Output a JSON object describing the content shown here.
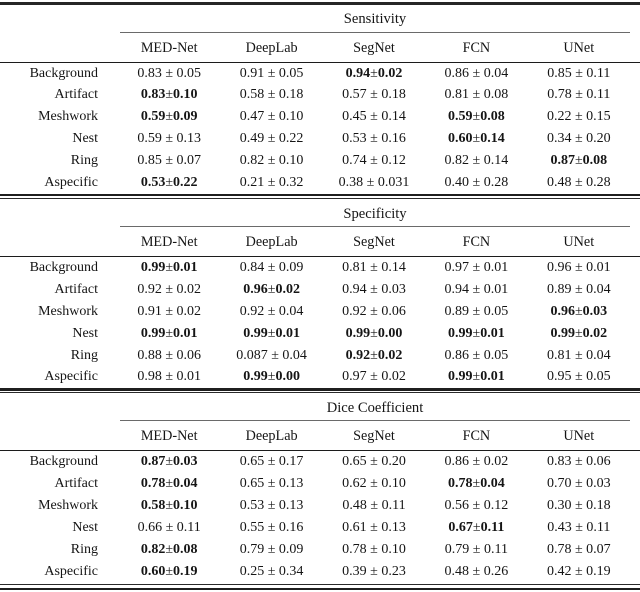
{
  "tables": [
    {
      "title": "Sensitivity",
      "columns": [
        "MED-Net",
        "DeepLab",
        "SegNet",
        "FCN",
        "UNet"
      ],
      "rows": [
        {
          "label": "Background",
          "cells": [
            {
              "v": "0.83 ± 0.05",
              "b": false
            },
            {
              "v": "0.91 ± 0.05",
              "b": false
            },
            {
              "v": "0.94 ± 0.02",
              "b": true
            },
            {
              "v": "0.86 ± 0.04",
              "b": false
            },
            {
              "v": "0.85 ± 0.11",
              "b": false
            }
          ]
        },
        {
          "label": "Artifact",
          "cells": [
            {
              "v": "0.83 ± 0.10",
              "b": true
            },
            {
              "v": "0.58 ± 0.18",
              "b": false
            },
            {
              "v": "0.57 ± 0.18",
              "b": false
            },
            {
              "v": "0.81 ± 0.08",
              "b": false
            },
            {
              "v": "0.78 ± 0.11",
              "b": false
            }
          ]
        },
        {
          "label": "Meshwork",
          "cells": [
            {
              "v": "0.59 ± 0.09",
              "b": true
            },
            {
              "v": "0.47 ± 0.10",
              "b": false
            },
            {
              "v": "0.45 ± 0.14",
              "b": false
            },
            {
              "v": "0.59 ± 0.08",
              "b": true
            },
            {
              "v": "0.22 ± 0.15",
              "b": false
            }
          ]
        },
        {
          "label": "Nest",
          "cells": [
            {
              "v": "0.59 ± 0.13",
              "b": false
            },
            {
              "v": "0.49 ± 0.22",
              "b": false
            },
            {
              "v": "0.53 ± 0.16",
              "b": false
            },
            {
              "v": "0.60 ± 0.14",
              "b": true
            },
            {
              "v": "0.34 ± 0.20",
              "b": false
            }
          ]
        },
        {
          "label": "Ring",
          "cells": [
            {
              "v": "0.85 ± 0.07",
              "b": false
            },
            {
              "v": "0.82 ± 0.10",
              "b": false
            },
            {
              "v": "0.74 ± 0.12",
              "b": false
            },
            {
              "v": "0.82 ± 0.14",
              "b": false
            },
            {
              "v": "0.87 ± 0.08",
              "b": true
            }
          ]
        },
        {
          "label": "Aspecific",
          "cells": [
            {
              "v": "0.53 ± 0.22",
              "b": true
            },
            {
              "v": "0.21 ± 0.32",
              "b": false
            },
            {
              "v": "0.38 ± 0.031",
              "b": false
            },
            {
              "v": "0.40 ± 0.28",
              "b": false
            },
            {
              "v": "0.48 ± 0.28",
              "b": false
            }
          ]
        }
      ]
    },
    {
      "title": "Specificity",
      "columns": [
        "MED-Net",
        "DeepLab",
        "SegNet",
        "FCN",
        "UNet"
      ],
      "rows": [
        {
          "label": "Background",
          "cells": [
            {
              "v": "0.99 ± 0.01",
              "b": true
            },
            {
              "v": "0.84 ± 0.09",
              "b": false
            },
            {
              "v": "0.81 ± 0.14",
              "b": false
            },
            {
              "v": "0.97 ± 0.01",
              "b": false
            },
            {
              "v": "0.96 ± 0.01",
              "b": false
            }
          ]
        },
        {
          "label": "Artifact",
          "cells": [
            {
              "v": "0.92 ± 0.02",
              "b": false
            },
            {
              "v": "0.96 ± 0.02",
              "b": true
            },
            {
              "v": "0.94 ± 0.03",
              "b": false
            },
            {
              "v": "0.94 ± 0.01",
              "b": false
            },
            {
              "v": "0.89 ± 0.04",
              "b": false
            }
          ]
        },
        {
          "label": "Meshwork",
          "cells": [
            {
              "v": "0.91 ± 0.02",
              "b": false
            },
            {
              "v": "0.92 ± 0.04",
              "b": false
            },
            {
              "v": "0.92 ± 0.06",
              "b": false
            },
            {
              "v": "0.89 ± 0.05",
              "b": false
            },
            {
              "v": "0.96 ± 0.03",
              "b": true
            }
          ]
        },
        {
          "label": "Nest",
          "cells": [
            {
              "v": "0.99 ± 0.01",
              "b": true
            },
            {
              "v": "0.99 ± 0.01",
              "b": true
            },
            {
              "v": "0.99 ± 0.00",
              "b": true
            },
            {
              "v": "0.99 ± 0.01",
              "b": true
            },
            {
              "v": "0.99 ± 0.02",
              "b": true
            }
          ]
        },
        {
          "label": "Ring",
          "cells": [
            {
              "v": "0.88 ± 0.06",
              "b": false
            },
            {
              "v": "0.087 ± 0.04",
              "b": false
            },
            {
              "v": "0.92 ± 0.02",
              "b": true
            },
            {
              "v": "0.86 ± 0.05",
              "b": false
            },
            {
              "v": "0.81 ± 0.04",
              "b": false
            }
          ]
        },
        {
          "label": "Aspecific",
          "cells": [
            {
              "v": "0.98 ± 0.01",
              "b": false
            },
            {
              "v": "0.99 ± 0.00",
              "b": true
            },
            {
              "v": "0.97 ± 0.02",
              "b": false
            },
            {
              "v": "0.99 ± 0.01",
              "b": true
            },
            {
              "v": "0.95 ± 0.05",
              "b": false
            }
          ]
        }
      ]
    },
    {
      "title": "Dice Coefficient",
      "columns": [
        "MED-Net",
        "DeepLab",
        "SegNet",
        "FCN",
        "UNet"
      ],
      "rows": [
        {
          "label": "Background",
          "cells": [
            {
              "v": "0.87 ± 0.03",
              "b": true
            },
            {
              "v": "0.65 ± 0.17",
              "b": false
            },
            {
              "v": "0.65 ± 0.20",
              "b": false
            },
            {
              "v": "0.86 ± 0.02",
              "b": false
            },
            {
              "v": "0.83 ± 0.06",
              "b": false
            }
          ]
        },
        {
          "label": "Artifact",
          "cells": [
            {
              "v": "0.78 ± 0.04",
              "b": true
            },
            {
              "v": "0.65 ± 0.13",
              "b": false
            },
            {
              "v": "0.62 ± 0.10",
              "b": false
            },
            {
              "v": "0.78 ± 0.04",
              "b": true
            },
            {
              "v": "0.70 ± 0.03",
              "b": false
            }
          ]
        },
        {
          "label": "Meshwork",
          "cells": [
            {
              "v": "0.58 ± 0.10",
              "b": true
            },
            {
              "v": "0.53 ± 0.13",
              "b": false
            },
            {
              "v": "0.48 ± 0.11",
              "b": false
            },
            {
              "v": "0.56 ± 0.12",
              "b": false
            },
            {
              "v": "0.30 ± 0.18",
              "b": false
            }
          ]
        },
        {
          "label": "Nest",
          "cells": [
            {
              "v": "0.66 ± 0.11",
              "b": false
            },
            {
              "v": "0.55 ± 0.16",
              "b": false
            },
            {
              "v": "0.61 ± 0.13",
              "b": false
            },
            {
              "v": "0.67 ± 0.11",
              "b": true
            },
            {
              "v": "0.43 ± 0.11",
              "b": false
            }
          ]
        },
        {
          "label": "Ring",
          "cells": [
            {
              "v": "0.82 ± 0.08",
              "b": true
            },
            {
              "v": "0.79 ± 0.09",
              "b": false
            },
            {
              "v": "0.78 ± 0.10",
              "b": false
            },
            {
              "v": "0.79 ± 0.11",
              "b": false
            },
            {
              "v": "0.78 ± 0.07",
              "b": false
            }
          ]
        },
        {
          "label": "Aspecific",
          "cells": [
            {
              "v": "0.60 ± 0.19",
              "b": true
            },
            {
              "v": "0.25 ± 0.34",
              "b": false
            },
            {
              "v": "0.39 ± 0.23",
              "b": false
            },
            {
              "v": "0.48 ± 0.26",
              "b": false
            },
            {
              "v": "0.42 ± 0.19",
              "b": false
            }
          ]
        }
      ]
    }
  ]
}
